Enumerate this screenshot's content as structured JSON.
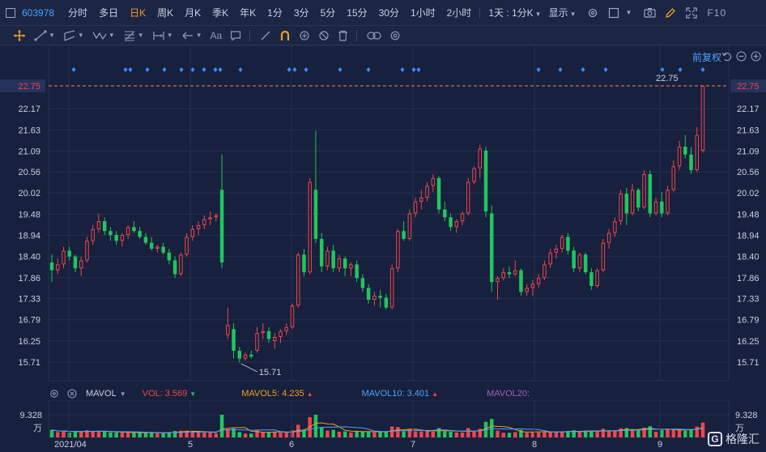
{
  "toolbar": {
    "code": "603978",
    "periods": [
      {
        "label": "分时",
        "active": false
      },
      {
        "label": "多日",
        "active": false
      },
      {
        "label": "日K",
        "active": true
      },
      {
        "label": "周K",
        "active": false
      },
      {
        "label": "月K",
        "active": false
      },
      {
        "label": "季K",
        "active": false
      },
      {
        "label": "年K",
        "active": false
      },
      {
        "label": "1分",
        "active": false
      },
      {
        "label": "3分",
        "active": false
      },
      {
        "label": "5分",
        "active": false
      },
      {
        "label": "15分",
        "active": false
      },
      {
        "label": "30分",
        "active": false
      },
      {
        "label": "1小时",
        "active": false
      },
      {
        "label": "2小时",
        "active": false
      }
    ],
    "period_select": "1天 : 1分K",
    "display_label": "显示",
    "f10_label": "F10"
  },
  "tools": {
    "text_tool_label": "Aa"
  },
  "chart": {
    "fuquan_label": "前复权",
    "current_price": "22.75",
    "price_ticks": [
      "22.17",
      "21.63",
      "21.09",
      "20.56",
      "20.02",
      "19.48",
      "18.94",
      "18.40",
      "17.86",
      "17.33",
      "16.79",
      "16.25",
      "15.71"
    ],
    "max_label": "22.75",
    "min_label": "15.71",
    "date_labels": [
      "2021/04",
      "5",
      "6",
      "7",
      "8",
      "9"
    ],
    "colors": {
      "up": "#f0454d",
      "down": "#22c55e",
      "bg": "#17203c",
      "grid": "#243052",
      "axis_text": "#c9d1e4",
      "dashed": "#e88a6a",
      "marker": "#3d8bff"
    }
  },
  "volume": {
    "name": "MAVOL",
    "vol_label": "VOL: 3.569",
    "vol_color": "#f0454d",
    "mavol5_label": "MAVOL5: 4.235",
    "mavol5_color": "#f0a020",
    "mavol10_label": "MAVOL10: 3.401",
    "mavol10_color": "#4aa3ff",
    "mavol20_label": "MAVOL20:",
    "mavol20_color": "#a060c0",
    "tick_value": "9.328",
    "unit": "万"
  },
  "watermark": {
    "text": "格隆汇"
  },
  "chart_data": {
    "type": "candlestick",
    "symbol": "603978",
    "period": "daily",
    "ylim": [
      15.4,
      23.0
    ],
    "price_axis_ticks": [
      22.17,
      21.63,
      21.09,
      20.56,
      20.02,
      19.48,
      18.94,
      18.4,
      17.86,
      17.33,
      16.79,
      16.25,
      15.71
    ],
    "candles": [
      [
        18.25,
        18.45,
        17.75,
        18.05
      ],
      [
        18.05,
        18.35,
        17.95,
        18.2
      ],
      [
        18.2,
        18.65,
        18.1,
        18.55
      ],
      [
        18.55,
        18.65,
        18.3,
        18.4
      ],
      [
        18.4,
        18.45,
        18.0,
        18.1
      ],
      [
        18.1,
        18.4,
        17.9,
        18.3
      ],
      [
        18.3,
        18.9,
        18.25,
        18.8
      ],
      [
        18.8,
        19.2,
        18.7,
        19.1
      ],
      [
        19.1,
        19.5,
        19.0,
        19.3
      ],
      [
        19.3,
        19.4,
        18.95,
        19.05
      ],
      [
        19.05,
        19.15,
        18.8,
        18.95
      ],
      [
        18.95,
        19.05,
        18.7,
        18.8
      ],
      [
        18.8,
        19.0,
        18.65,
        18.95
      ],
      [
        18.95,
        19.2,
        18.85,
        19.15
      ],
      [
        19.15,
        19.3,
        19.0,
        19.05
      ],
      [
        19.05,
        19.15,
        18.85,
        18.9
      ],
      [
        18.9,
        19.0,
        18.7,
        18.75
      ],
      [
        18.75,
        18.9,
        18.55,
        18.6
      ],
      [
        18.6,
        18.7,
        18.5,
        18.65
      ],
      [
        18.65,
        18.75,
        18.45,
        18.5
      ],
      [
        18.5,
        18.6,
        18.2,
        18.3
      ],
      [
        18.3,
        18.4,
        17.85,
        17.95
      ],
      [
        17.95,
        18.5,
        17.9,
        18.45
      ],
      [
        18.45,
        19.0,
        18.4,
        18.9
      ],
      [
        18.9,
        19.2,
        18.8,
        19.1
      ],
      [
        19.1,
        19.3,
        18.95,
        19.2
      ],
      [
        19.2,
        19.45,
        19.1,
        19.35
      ],
      [
        19.35,
        19.55,
        19.2,
        19.4
      ],
      [
        19.4,
        19.5,
        19.3,
        19.45
      ],
      [
        20.1,
        21.0,
        18.1,
        18.25
      ],
      [
        16.4,
        17.1,
        16.3,
        16.65
      ],
      [
        16.55,
        16.7,
        15.8,
        16.0
      ],
      [
        16.0,
        16.1,
        15.7,
        15.8
      ],
      [
        15.8,
        15.95,
        15.75,
        15.9
      ],
      [
        15.9,
        16.0,
        15.8,
        15.85
      ],
      [
        16.0,
        16.6,
        15.95,
        16.45
      ],
      [
        16.45,
        16.7,
        16.3,
        16.5
      ],
      [
        16.5,
        16.6,
        16.2,
        16.3
      ],
      [
        16.25,
        16.45,
        16.05,
        16.35
      ],
      [
        16.35,
        16.55,
        16.2,
        16.5
      ],
      [
        16.5,
        16.7,
        16.4,
        16.6
      ],
      [
        16.6,
        17.2,
        16.55,
        17.15
      ],
      [
        17.15,
        18.5,
        17.1,
        18.45
      ],
      [
        18.45,
        18.6,
        17.9,
        18.0
      ],
      [
        18.0,
        20.4,
        17.95,
        20.3
      ],
      [
        20.1,
        21.6,
        18.75,
        18.85
      ],
      [
        18.85,
        19.0,
        18.0,
        18.15
      ],
      [
        18.15,
        18.65,
        18.05,
        18.55
      ],
      [
        18.55,
        18.7,
        18.0,
        18.1
      ],
      [
        18.1,
        18.45,
        18.0,
        18.35
      ],
      [
        18.35,
        18.4,
        17.9,
        18.1
      ],
      [
        18.1,
        18.25,
        17.9,
        18.2
      ],
      [
        18.2,
        18.3,
        17.75,
        17.85
      ],
      [
        17.85,
        17.95,
        17.5,
        17.6
      ],
      [
        17.6,
        17.7,
        17.2,
        17.3
      ],
      [
        17.3,
        17.5,
        17.15,
        17.4
      ],
      [
        17.4,
        17.55,
        17.1,
        17.35
      ],
      [
        17.35,
        17.45,
        17.05,
        17.1
      ],
      [
        17.1,
        18.2,
        17.05,
        18.1
      ],
      [
        18.1,
        19.1,
        18.0,
        19.05
      ],
      [
        19.05,
        19.3,
        18.8,
        18.85
      ],
      [
        18.85,
        19.6,
        18.8,
        19.5
      ],
      [
        19.5,
        19.9,
        19.4,
        19.8
      ],
      [
        19.8,
        20.1,
        19.6,
        19.9
      ],
      [
        19.9,
        20.3,
        19.8,
        20.2
      ],
      [
        20.2,
        20.5,
        20.05,
        20.4
      ],
      [
        20.4,
        20.45,
        19.5,
        19.6
      ],
      [
        19.6,
        19.8,
        19.3,
        19.4
      ],
      [
        19.4,
        19.5,
        19.05,
        19.15
      ],
      [
        19.15,
        19.35,
        19.0,
        19.3
      ],
      [
        19.3,
        19.55,
        19.2,
        19.5
      ],
      [
        19.5,
        20.4,
        19.45,
        20.3
      ],
      [
        20.3,
        20.7,
        20.25,
        20.65
      ],
      [
        20.65,
        21.25,
        20.4,
        21.15
      ],
      [
        21.1,
        21.2,
        19.4,
        19.55
      ],
      [
        19.5,
        19.7,
        17.5,
        17.75
      ],
      [
        17.75,
        17.9,
        17.3,
        17.85
      ],
      [
        17.85,
        18.1,
        17.8,
        18.0
      ],
      [
        18.0,
        18.15,
        17.85,
        17.95
      ],
      [
        17.95,
        18.3,
        17.9,
        18.05
      ],
      [
        18.05,
        18.1,
        17.4,
        17.5
      ],
      [
        17.5,
        17.7,
        17.4,
        17.6
      ],
      [
        17.6,
        17.8,
        17.4,
        17.7
      ],
      [
        17.7,
        17.95,
        17.6,
        17.85
      ],
      [
        17.85,
        18.3,
        17.8,
        18.2
      ],
      [
        18.2,
        18.6,
        18.1,
        18.5
      ],
      [
        18.5,
        18.7,
        18.35,
        18.6
      ],
      [
        18.6,
        18.95,
        18.5,
        18.9
      ],
      [
        18.9,
        19.0,
        18.45,
        18.55
      ],
      [
        18.55,
        18.65,
        18.0,
        18.1
      ],
      [
        18.1,
        18.5,
        18.0,
        18.45
      ],
      [
        18.45,
        18.5,
        17.95,
        18.0
      ],
      [
        18.0,
        18.1,
        17.55,
        17.65
      ],
      [
        17.65,
        18.1,
        17.6,
        18.05
      ],
      [
        18.05,
        18.85,
        18.0,
        18.75
      ],
      [
        18.75,
        19.1,
        18.6,
        19.0
      ],
      [
        19.0,
        19.4,
        18.9,
        19.3
      ],
      [
        19.3,
        20.1,
        19.2,
        20.0
      ],
      [
        20.0,
        20.15,
        19.2,
        19.5
      ],
      [
        19.5,
        20.25,
        19.45,
        20.1
      ],
      [
        20.1,
        20.15,
        19.55,
        19.65
      ],
      [
        19.65,
        20.6,
        19.6,
        20.5
      ],
      [
        20.5,
        20.6,
        19.4,
        19.5
      ],
      [
        19.5,
        19.9,
        19.45,
        19.8
      ],
      [
        19.8,
        20.05,
        19.4,
        19.5
      ],
      [
        19.5,
        20.2,
        19.45,
        20.1
      ],
      [
        20.1,
        20.85,
        20.05,
        20.7
      ],
      [
        20.7,
        21.35,
        20.6,
        21.2
      ],
      [
        21.2,
        21.5,
        20.9,
        21.0
      ],
      [
        21.0,
        21.2,
        20.5,
        20.6
      ],
      [
        20.6,
        21.7,
        20.55,
        21.5
      ],
      [
        21.1,
        22.75,
        21.05,
        22.75
      ]
    ],
    "min_marker": 15.71,
    "max_marker": 22.75,
    "current_price_line": 22.75,
    "volume": {
      "unit": "万",
      "axis_tick": 9.328,
      "VOL": 3.569,
      "MAVOL5": 4.235,
      "MAVOL10": 3.401
    }
  }
}
